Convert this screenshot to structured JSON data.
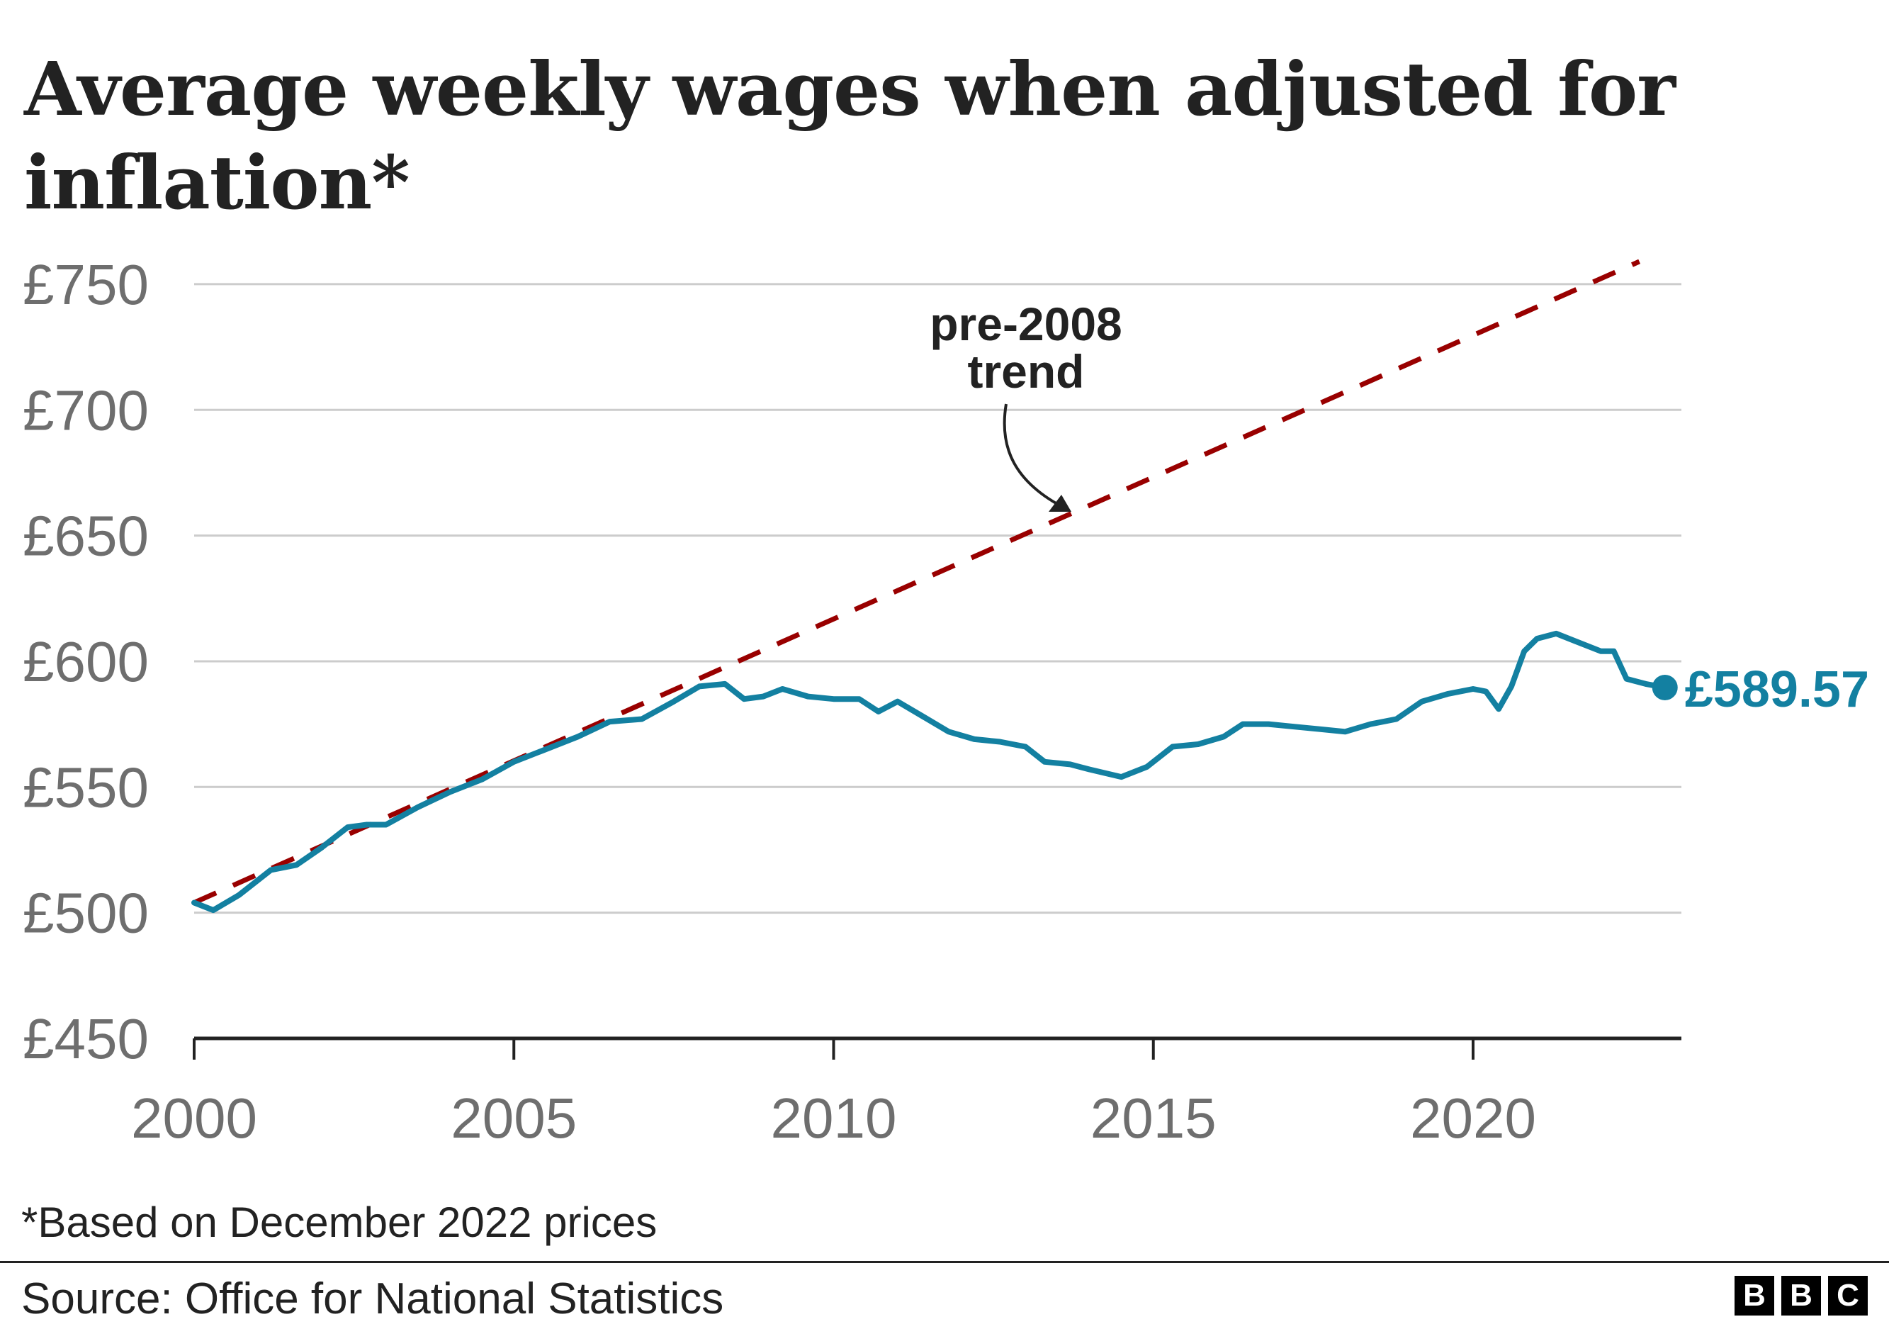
{
  "title": "Average weekly wages when adjusted for inflation*",
  "footnote": "*Based on December 2022 prices",
  "source": "Source: Office for National Statistics",
  "logo": [
    "B",
    "B",
    "C"
  ],
  "colors": {
    "series": "#1380A1",
    "trend": "#990000",
    "grid": "#cccccc",
    "axis": "#222222",
    "tick_text": "#6e6e6e"
  },
  "chart_data": {
    "type": "line",
    "title": "Average weekly wages when adjusted for inflation*",
    "xlabel": "",
    "ylabel": "",
    "xlim": [
      2000,
      2023.3
    ],
    "ylim": [
      450,
      750
    ],
    "x_ticks": [
      2000,
      2005,
      2010,
      2015,
      2020
    ],
    "x_tick_labels": [
      "2000",
      "2005",
      "2010",
      "2015",
      "2020"
    ],
    "y_ticks": [
      450,
      500,
      550,
      600,
      650,
      700,
      750
    ],
    "y_tick_labels": [
      "£450",
      "£500",
      "£550",
      "£600",
      "£650",
      "£700",
      "£750"
    ],
    "grid": true,
    "series": [
      {
        "x": [
          2000.0,
          2000.3,
          2000.7,
          2001.2,
          2001.6,
          2002.0,
          2002.4,
          2002.7,
          2003.0,
          2003.5,
          2004.0,
          2004.5,
          2005.0,
          2005.5,
          2006.0,
          2006.5,
          2007.0,
          2007.5,
          2007.9,
          2008.3,
          2008.6,
          2008.9,
          2009.2,
          2009.6,
          2010.0,
          2010.4,
          2010.7,
          2011.0,
          2011.4,
          2011.8,
          2012.2,
          2012.6,
          2013.0,
          2013.3,
          2013.7,
          2014.0,
          2014.5,
          2014.9,
          2015.3,
          2015.7,
          2016.1,
          2016.4,
          2016.8,
          2017.2,
          2017.6,
          2018.0,
          2018.4,
          2018.8,
          2019.2,
          2019.6,
          2020.0,
          2020.2,
          2020.4,
          2020.6,
          2020.8,
          2021.0,
          2021.3,
          2021.6,
          2022.0,
          2022.2,
          2022.4,
          2022.7,
          2023.0
        ],
        "values": [
          504,
          501,
          507,
          517,
          519,
          526,
          534,
          535,
          535,
          542,
          548,
          553,
          560,
          565,
          570,
          576,
          577,
          584,
          590,
          591,
          585,
          586,
          589,
          586,
          585,
          585,
          580,
          584,
          578,
          572,
          569,
          568,
          566,
          560,
          559,
          557,
          554,
          558,
          566,
          567,
          570,
          575,
          575,
          574,
          573,
          572,
          575,
          577,
          584,
          587,
          589,
          588,
          581,
          590,
          604,
          609,
          611,
          608,
          604,
          604,
          593,
          591,
          589.57
        ]
      },
      {
        "name": "pre-2008 trend",
        "style": "dashed",
        "x": [
          2000.0,
          2022.6
        ],
        "values": [
          504,
          759
        ]
      }
    ],
    "annotations": [
      {
        "text": [
          "pre-2008",
          "trend"
        ],
        "points_to_x": 2013.7,
        "points_to_y": 659
      },
      {
        "text": "£589.57",
        "x": 2023.0,
        "y": 589.57
      }
    ]
  }
}
